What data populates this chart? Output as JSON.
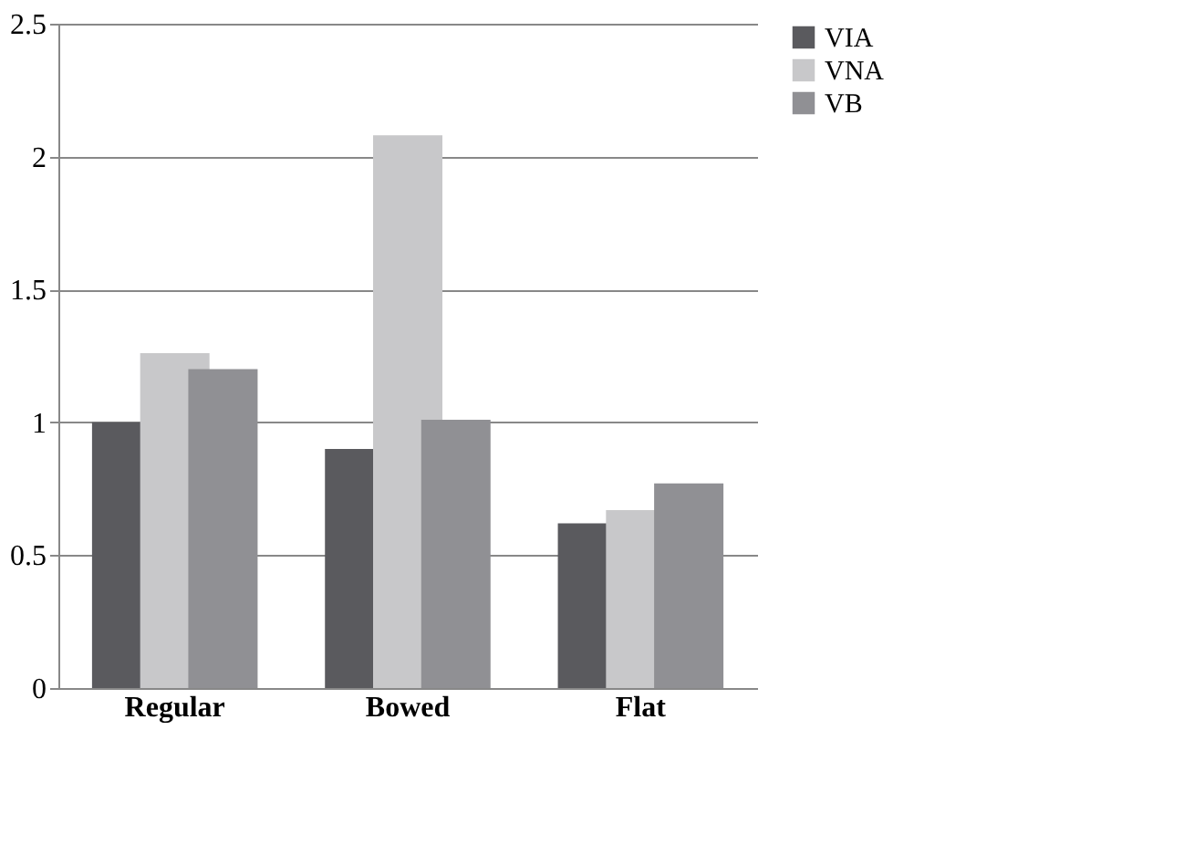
{
  "chart_data": {
    "type": "bar",
    "categories": [
      "Regular",
      "Bowed",
      "Flat"
    ],
    "series": [
      {
        "name": "VIA",
        "color": "#5a5a5e",
        "values": [
          1.0,
          0.9,
          0.62
        ]
      },
      {
        "name": "VNA",
        "color": "#c8c8ca",
        "values": [
          1.26,
          2.08,
          0.67
        ]
      },
      {
        "name": "VB",
        "color": "#909094",
        "values": [
          1.2,
          1.01,
          0.77
        ]
      }
    ],
    "ylim": [
      0,
      2.5
    ],
    "yticks": [
      0,
      0.5,
      1,
      1.5,
      2,
      2.5
    ],
    "grid": "y",
    "legend": "right"
  }
}
